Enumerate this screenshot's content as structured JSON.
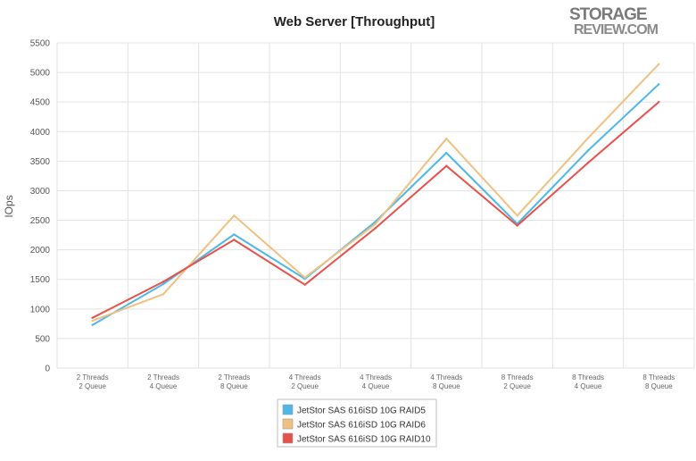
{
  "chart_data": {
    "type": "line",
    "title": "Web Server [Throughput]",
    "ylabel": "IOps",
    "xlabel": "",
    "ylim": [
      0,
      5500
    ],
    "yticks": [
      0,
      500,
      1000,
      1500,
      2000,
      2500,
      3000,
      3500,
      4000,
      4500,
      5000,
      5500
    ],
    "grid": true,
    "legend_position": "bottom-center",
    "categories": [
      [
        "2 Threads",
        "2 Queue"
      ],
      [
        "2 Threads",
        "4 Queue"
      ],
      [
        "2 Threads",
        "8 Queue"
      ],
      [
        "4 Threads",
        "2 Queue"
      ],
      [
        "4 Threads",
        "4 Queue"
      ],
      [
        "4 Threads",
        "8 Queue"
      ],
      [
        "8 Threads",
        "2 Queue"
      ],
      [
        "8 Threads",
        "4 Queue"
      ],
      [
        "8 Threads",
        "8 Queue"
      ]
    ],
    "series": [
      {
        "name": "JetStor SAS 616iSD 10G RAID5",
        "color": "#4db8e8",
        "values": [
          730,
          1420,
          2260,
          1510,
          2480,
          3640,
          2440,
          3680,
          4800
        ]
      },
      {
        "name": "JetStor SAS 616iSD 10G RAID6",
        "color": "#f0c080",
        "values": [
          800,
          1250,
          2580,
          1530,
          2440,
          3880,
          2580,
          3890,
          5140
        ]
      },
      {
        "name": "JetStor SAS 616iSD 10G RAID10",
        "color": "#e8504a",
        "values": [
          850,
          1460,
          2170,
          1410,
          2370,
          3420,
          2410,
          3470,
          4500
        ]
      }
    ]
  },
  "watermark": {
    "line1": "STORAGE",
    "line2": "REVIEW.COM"
  }
}
